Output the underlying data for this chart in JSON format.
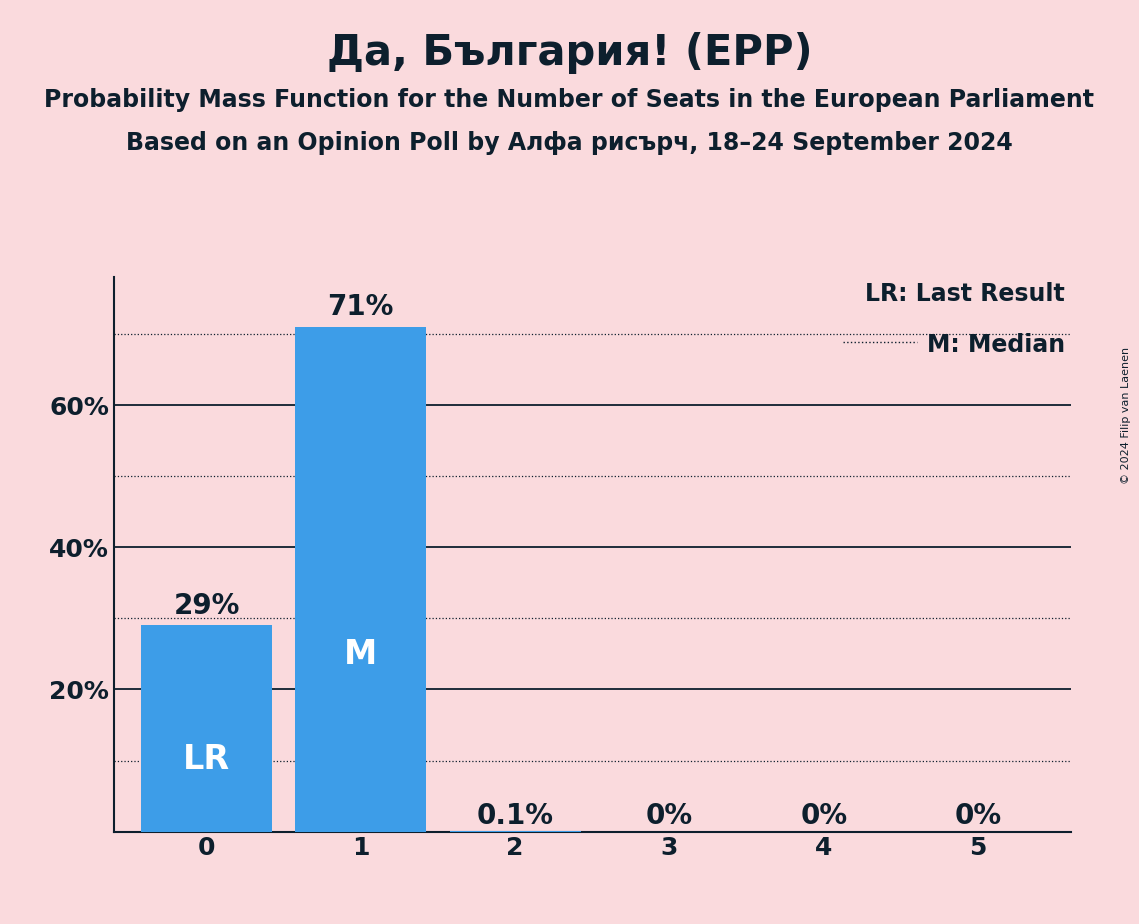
{
  "title": "Да, България! (EPP)",
  "subtitle1": "Probability Mass Function for the Number of Seats in the European Parliament",
  "subtitle2": "Based on an Opinion Poll by Алфа рисърч, 18–24 September 2024",
  "copyright": "© 2024 Filip van Laenen",
  "categories": [
    0,
    1,
    2,
    3,
    4,
    5
  ],
  "values": [
    0.29,
    0.71,
    0.001,
    0.0,
    0.0,
    0.0
  ],
  "bar_color": "#3d9de8",
  "background_color": "#FADADD",
  "text_color": "#0d1f2d",
  "bar_labels_above": [
    "29%",
    "71%"
  ],
  "bar_labels_inside_bottom": [
    "0.1%",
    "0%",
    "0%",
    "0%"
  ],
  "bar_inner_labels": [
    "LR",
    "M",
    "",
    "",
    "",
    ""
  ],
  "dotted_ticks": [
    0.1,
    0.3,
    0.5,
    0.7
  ],
  "solid_ticks": [
    0.2,
    0.4,
    0.6
  ],
  "ytick_labels": [
    "20%",
    "40%",
    "60%"
  ],
  "ylim": [
    0,
    0.78
  ],
  "legend_lr": "LR: Last Result",
  "legend_m": "M: Median",
  "title_fontsize": 30,
  "subtitle_fontsize": 17,
  "bar_label_fontsize": 20,
  "bar_inner_fontsize": 24,
  "tick_fontsize": 18,
  "legend_fontsize": 17,
  "copyright_fontsize": 8
}
